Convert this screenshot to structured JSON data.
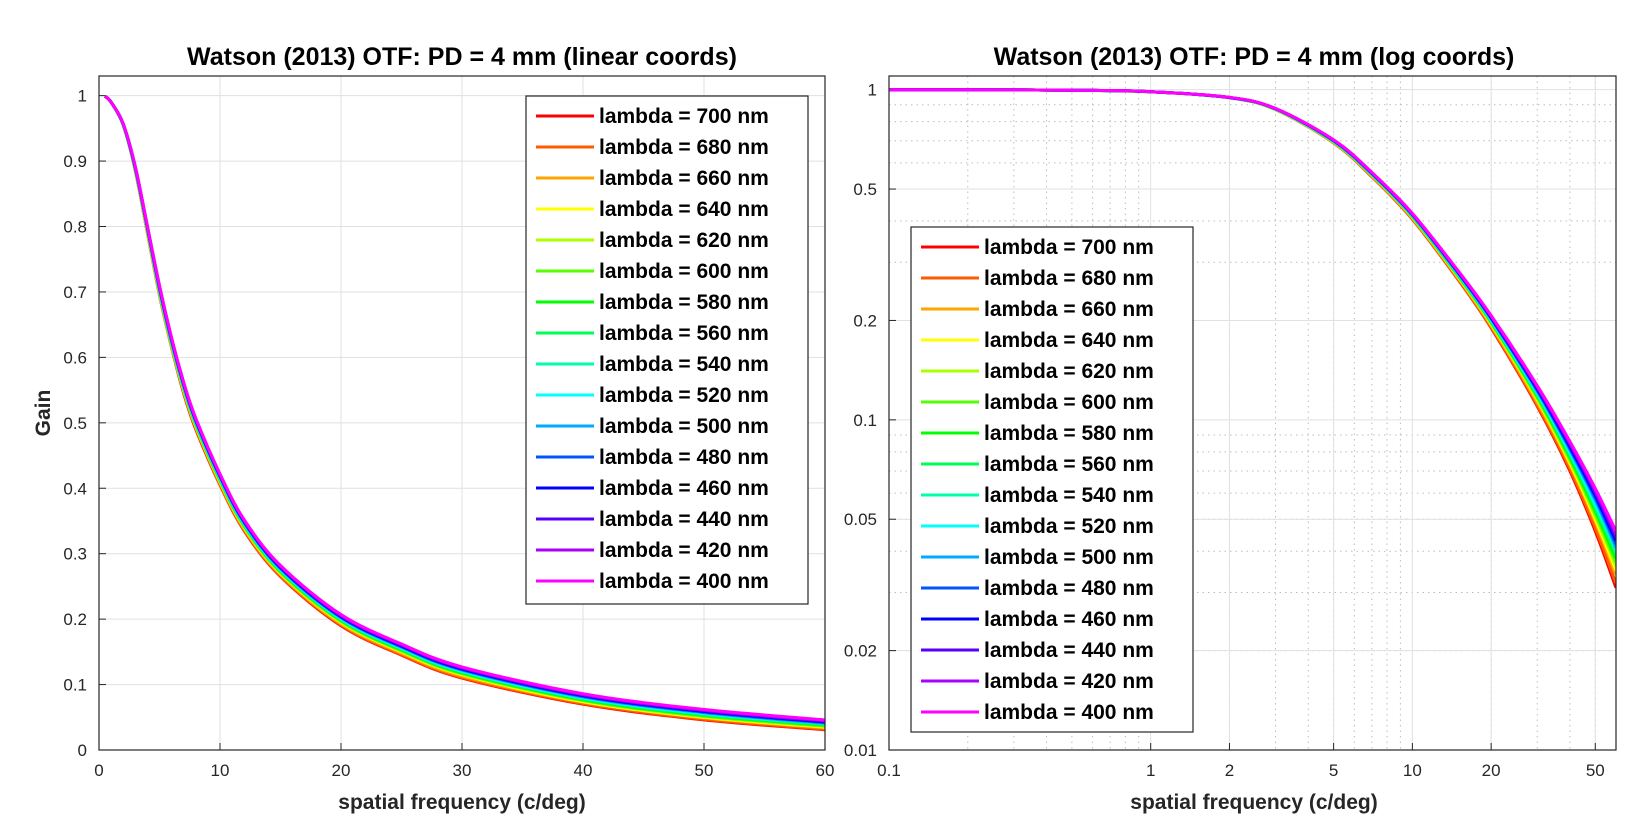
{
  "chart_data": [
    {
      "type": "line",
      "title": "Watson (2013) OTF: PD =  4 mm (linear coords)",
      "xlabel": "spatial frequency (c/deg)",
      "ylabel": "Gain",
      "xscale": "linear",
      "yscale": "linear",
      "xlim": [
        0,
        60
      ],
      "ylim": [
        0,
        1.03
      ],
      "xticks": [
        0,
        10,
        20,
        30,
        40,
        50,
        60
      ],
      "xticklabels": [
        "0",
        "10",
        "20",
        "30",
        "40",
        "50",
        "60"
      ],
      "yticks": [
        0,
        0.1,
        0.2,
        0.3,
        0.4,
        0.5,
        0.6,
        0.7,
        0.8,
        0.9,
        1
      ],
      "yticklabels": [
        "0",
        "0.1",
        "0.2",
        "0.3",
        "0.4",
        "0.5",
        "0.6",
        "0.7",
        "0.8",
        "0.9",
        "1"
      ],
      "grid": "major",
      "legend": "top-right",
      "x": [
        0.5,
        1,
        2,
        3,
        4,
        5,
        6,
        7,
        8,
        10,
        12,
        15,
        20,
        25,
        30,
        40,
        50,
        60
      ],
      "series": [
        {
          "name": "lambda = 700 nm",
          "color": "#ff0000",
          "values": [
            0.999,
            0.99,
            0.955,
            0.885,
            0.79,
            0.695,
            0.615,
            0.545,
            0.49,
            0.405,
            0.335,
            0.265,
            0.19,
            0.145,
            0.11,
            0.07,
            0.046,
            0.031
          ]
        },
        {
          "name": "lambda = 680 nm",
          "color": "#ff5a00",
          "values": [
            0.999,
            0.99,
            0.955,
            0.885,
            0.79,
            0.696,
            0.616,
            0.547,
            0.492,
            0.406,
            0.336,
            0.266,
            0.191,
            0.146,
            0.111,
            0.071,
            0.047,
            0.032
          ]
        },
        {
          "name": "lambda = 660 nm",
          "color": "#ffa500",
          "values": [
            0.999,
            0.99,
            0.955,
            0.885,
            0.791,
            0.697,
            0.617,
            0.548,
            0.493,
            0.408,
            0.338,
            0.268,
            0.193,
            0.148,
            0.113,
            0.073,
            0.049,
            0.034
          ]
        },
        {
          "name": "lambda = 640 nm",
          "color": "#ffff00",
          "values": [
            0.999,
            0.99,
            0.955,
            0.886,
            0.792,
            0.698,
            0.618,
            0.55,
            0.495,
            0.41,
            0.34,
            0.27,
            0.195,
            0.15,
            0.115,
            0.074,
            0.05,
            0.035
          ]
        },
        {
          "name": "lambda = 620 nm",
          "color": "#aaff00",
          "values": [
            0.999,
            0.99,
            0.955,
            0.886,
            0.793,
            0.699,
            0.619,
            0.551,
            0.496,
            0.411,
            0.341,
            0.271,
            0.196,
            0.151,
            0.116,
            0.075,
            0.051,
            0.036
          ]
        },
        {
          "name": "lambda = 600 nm",
          "color": "#55ff00",
          "values": [
            0.999,
            0.99,
            0.955,
            0.887,
            0.794,
            0.7,
            0.62,
            0.552,
            0.497,
            0.412,
            0.342,
            0.272,
            0.197,
            0.152,
            0.117,
            0.076,
            0.052,
            0.037
          ]
        },
        {
          "name": "lambda = 580 nm",
          "color": "#00ff00",
          "values": [
            0.999,
            0.99,
            0.956,
            0.887,
            0.795,
            0.701,
            0.621,
            0.553,
            0.498,
            0.413,
            0.343,
            0.273,
            0.198,
            0.153,
            0.118,
            0.077,
            0.053,
            0.038
          ]
        },
        {
          "name": "lambda = 560 nm",
          "color": "#00ff55",
          "values": [
            0.999,
            0.99,
            0.956,
            0.888,
            0.796,
            0.702,
            0.622,
            0.554,
            0.499,
            0.414,
            0.344,
            0.274,
            0.199,
            0.154,
            0.119,
            0.078,
            0.054,
            0.039
          ]
        },
        {
          "name": "lambda = 540 nm",
          "color": "#00ffaa",
          "values": [
            0.999,
            0.99,
            0.956,
            0.888,
            0.797,
            0.703,
            0.623,
            0.555,
            0.5,
            0.415,
            0.345,
            0.275,
            0.2,
            0.155,
            0.12,
            0.079,
            0.055,
            0.04
          ]
        },
        {
          "name": "lambda = 520 nm",
          "color": "#00ffff",
          "values": [
            0.999,
            0.99,
            0.956,
            0.889,
            0.797,
            0.704,
            0.624,
            0.556,
            0.501,
            0.416,
            0.346,
            0.276,
            0.201,
            0.156,
            0.121,
            0.08,
            0.056,
            0.041
          ]
        },
        {
          "name": "lambda = 500 nm",
          "color": "#00aaff",
          "values": [
            0.999,
            0.99,
            0.956,
            0.889,
            0.798,
            0.705,
            0.625,
            0.557,
            0.502,
            0.417,
            0.347,
            0.277,
            0.202,
            0.157,
            0.122,
            0.081,
            0.057,
            0.041
          ]
        },
        {
          "name": "lambda = 480 nm",
          "color": "#0055ff",
          "values": [
            0.999,
            0.99,
            0.956,
            0.89,
            0.798,
            0.706,
            0.626,
            0.558,
            0.503,
            0.418,
            0.348,
            0.278,
            0.203,
            0.158,
            0.123,
            0.082,
            0.058,
            0.042
          ]
        },
        {
          "name": "lambda = 460 nm",
          "color": "#0000ff",
          "values": [
            0.999,
            0.99,
            0.957,
            0.89,
            0.799,
            0.707,
            0.627,
            0.559,
            0.504,
            0.419,
            0.349,
            0.279,
            0.204,
            0.159,
            0.124,
            0.083,
            0.059,
            0.043
          ]
        },
        {
          "name": "lambda = 440 nm",
          "color": "#5500ff",
          "values": [
            0.999,
            0.99,
            0.957,
            0.891,
            0.8,
            0.708,
            0.628,
            0.56,
            0.505,
            0.42,
            0.35,
            0.28,
            0.205,
            0.16,
            0.125,
            0.084,
            0.06,
            0.044
          ]
        },
        {
          "name": "lambda = 420 nm",
          "color": "#aa00ff",
          "values": [
            0.999,
            0.99,
            0.957,
            0.891,
            0.8,
            0.709,
            0.629,
            0.561,
            0.506,
            0.421,
            0.351,
            0.281,
            0.206,
            0.161,
            0.126,
            0.085,
            0.061,
            0.045
          ]
        },
        {
          "name": "lambda = 400 nm",
          "color": "#ff00ff",
          "values": [
            0.999,
            0.99,
            0.957,
            0.892,
            0.801,
            0.71,
            0.63,
            0.562,
            0.507,
            0.422,
            0.352,
            0.282,
            0.207,
            0.162,
            0.127,
            0.086,
            0.062,
            0.046
          ]
        }
      ]
    },
    {
      "type": "line",
      "title": "Watson (2013) OTF: PD =  4 mm (log coords)",
      "xlabel": "spatial frequency (c/deg)",
      "ylabel": "",
      "xscale": "log",
      "yscale": "log",
      "xlim": [
        0.1,
        60
      ],
      "ylim": [
        0.01,
        1.1
      ],
      "xticks": [
        0.1,
        1,
        2,
        5,
        10,
        20,
        50
      ],
      "xticklabels": [
        "0.1",
        "1",
        "2",
        "5",
        "10",
        "20",
        "50"
      ],
      "yticks": [
        0.01,
        0.02,
        0.05,
        0.1,
        0.2,
        0.5,
        1
      ],
      "yticklabels": [
        "0.01",
        "0.02",
        "0.05",
        "0.1",
        "0.2",
        "0.5",
        "1"
      ],
      "grid": "major and minor",
      "legend": "left",
      "x": [
        0.1,
        0.2,
        0.5,
        1,
        2,
        3,
        5,
        7,
        10,
        15,
        20,
        30,
        40,
        50,
        60
      ],
      "series": [
        {
          "name": "lambda = 700 nm",
          "color": "#ff0000",
          "values": [
            1.0,
            0.999,
            0.996,
            0.985,
            0.945,
            0.87,
            0.69,
            0.545,
            0.405,
            0.265,
            0.19,
            0.11,
            0.07,
            0.046,
            0.031
          ]
        },
        {
          "name": "lambda = 680 nm",
          "color": "#ff5a00",
          "values": [
            1.0,
            0.999,
            0.996,
            0.985,
            0.945,
            0.87,
            0.691,
            0.547,
            0.406,
            0.266,
            0.191,
            0.111,
            0.071,
            0.047,
            0.032
          ]
        },
        {
          "name": "lambda = 660 nm",
          "color": "#ffa500",
          "values": [
            1.0,
            0.999,
            0.996,
            0.985,
            0.945,
            0.871,
            0.692,
            0.548,
            0.408,
            0.268,
            0.193,
            0.113,
            0.073,
            0.049,
            0.034
          ]
        },
        {
          "name": "lambda = 640 nm",
          "color": "#ffff00",
          "values": [
            1.0,
            0.999,
            0.996,
            0.985,
            0.945,
            0.871,
            0.693,
            0.55,
            0.41,
            0.27,
            0.195,
            0.115,
            0.074,
            0.05,
            0.035
          ]
        },
        {
          "name": "lambda = 620 nm",
          "color": "#aaff00",
          "values": [
            1.0,
            0.999,
            0.996,
            0.985,
            0.945,
            0.872,
            0.694,
            0.551,
            0.411,
            0.271,
            0.196,
            0.116,
            0.075,
            0.051,
            0.036
          ]
        },
        {
          "name": "lambda = 600 nm",
          "color": "#55ff00",
          "values": [
            1.0,
            0.999,
            0.996,
            0.985,
            0.946,
            0.872,
            0.695,
            0.552,
            0.412,
            0.272,
            0.197,
            0.117,
            0.076,
            0.052,
            0.037
          ]
        },
        {
          "name": "lambda = 580 nm",
          "color": "#00ff00",
          "values": [
            1.0,
            0.999,
            0.996,
            0.985,
            0.946,
            0.873,
            0.696,
            0.553,
            0.413,
            0.273,
            0.198,
            0.118,
            0.077,
            0.053,
            0.038
          ]
        },
        {
          "name": "lambda = 560 nm",
          "color": "#00ff55",
          "values": [
            1.0,
            0.999,
            0.996,
            0.985,
            0.946,
            0.873,
            0.697,
            0.554,
            0.414,
            0.274,
            0.199,
            0.119,
            0.078,
            0.054,
            0.039
          ]
        },
        {
          "name": "lambda = 540 nm",
          "color": "#00ffaa",
          "values": [
            1.0,
            0.999,
            0.996,
            0.986,
            0.946,
            0.874,
            0.698,
            0.555,
            0.415,
            0.275,
            0.2,
            0.12,
            0.079,
            0.055,
            0.04
          ]
        },
        {
          "name": "lambda = 520 nm",
          "color": "#00ffff",
          "values": [
            1.0,
            0.999,
            0.996,
            0.986,
            0.946,
            0.874,
            0.699,
            0.556,
            0.416,
            0.276,
            0.201,
            0.121,
            0.08,
            0.056,
            0.041
          ]
        },
        {
          "name": "lambda = 500 nm",
          "color": "#00aaff",
          "values": [
            1.0,
            0.999,
            0.996,
            0.986,
            0.947,
            0.875,
            0.7,
            0.557,
            0.417,
            0.277,
            0.202,
            0.122,
            0.081,
            0.057,
            0.041
          ]
        },
        {
          "name": "lambda = 480 nm",
          "color": "#0055ff",
          "values": [
            1.0,
            0.999,
            0.996,
            0.986,
            0.947,
            0.875,
            0.701,
            0.558,
            0.418,
            0.278,
            0.203,
            0.123,
            0.082,
            0.058,
            0.042
          ]
        },
        {
          "name": "lambda = 460 nm",
          "color": "#0000ff",
          "values": [
            1.0,
            0.999,
            0.996,
            0.986,
            0.947,
            0.876,
            0.702,
            0.559,
            0.419,
            0.279,
            0.204,
            0.124,
            0.083,
            0.059,
            0.043
          ]
        },
        {
          "name": "lambda = 440 nm",
          "color": "#5500ff",
          "values": [
            1.0,
            0.999,
            0.996,
            0.986,
            0.947,
            0.876,
            0.703,
            0.56,
            0.42,
            0.28,
            0.205,
            0.125,
            0.084,
            0.06,
            0.044
          ]
        },
        {
          "name": "lambda = 420 nm",
          "color": "#aa00ff",
          "values": [
            1.0,
            0.999,
            0.996,
            0.986,
            0.948,
            0.877,
            0.704,
            0.561,
            0.421,
            0.281,
            0.206,
            0.126,
            0.085,
            0.061,
            0.045
          ]
        },
        {
          "name": "lambda = 400 nm",
          "color": "#ff00ff",
          "values": [
            1.0,
            0.999,
            0.996,
            0.986,
            0.948,
            0.877,
            0.705,
            0.562,
            0.422,
            0.282,
            0.207,
            0.127,
            0.086,
            0.062,
            0.046
          ]
        }
      ]
    }
  ]
}
